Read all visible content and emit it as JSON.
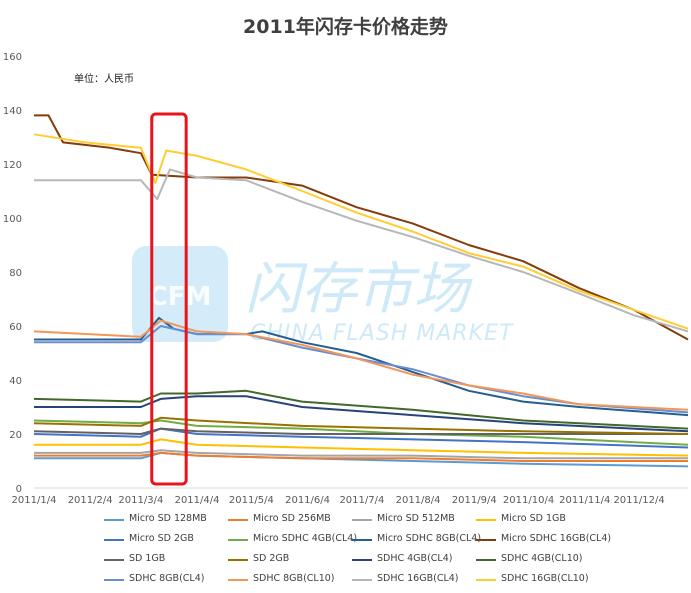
{
  "chart_data": {
    "type": "line",
    "title": "2011年闪存卡价格走势",
    "unit_label": "单位：人民币",
    "watermark": {
      "logo": "CFM",
      "text_cn": "闪存市场",
      "text_en": "CHINA FLASH MARKET"
    },
    "xlabel": "",
    "ylabel": "",
    "ylim": [
      0,
      160
    ],
    "yticks": [
      0,
      20,
      40,
      60,
      80,
      100,
      120,
      140,
      160
    ],
    "xlim": [
      "2011-01-04",
      "2011-12-31"
    ],
    "x_tick_labels": [
      "2011/1/4",
      "2011/2/4",
      "2011/3/4",
      "2011/4/4",
      "2011/5/4",
      "2011/6/4",
      "2011/7/4",
      "2011/8/4",
      "2011/9/4",
      "2011/10/4",
      "2011/11/4",
      "2011/12/4"
    ],
    "x_tick_dates": [
      "2011-01-04",
      "2011-02-04",
      "2011-03-04",
      "2011-04-04",
      "2011-05-04",
      "2011-06-04",
      "2011-07-04",
      "2011-08-04",
      "2011-09-04",
      "2011-10-04",
      "2011-11-04",
      "2011-12-04"
    ],
    "highlight_range": [
      "2011-03-10",
      "2011-03-29"
    ],
    "highlight_color": "#e8141b",
    "grid": false,
    "legend_position": "bottom",
    "series": [
      {
        "name": "Micro SD 128MB",
        "color": "#5b9bd5",
        "x": [
          "2011-01-04",
          "2011-02-15",
          "2011-03-04",
          "2011-03-15",
          "2011-04-04",
          "2011-06-01",
          "2011-08-01",
          "2011-10-01",
          "2011-12-31"
        ],
        "values": [
          11,
          11,
          11,
          13,
          12,
          11,
          10,
          9,
          8
        ]
      },
      {
        "name": "Micro SD 256MB",
        "color": "#ed7d31",
        "x": [
          "2011-01-04",
          "2011-03-04",
          "2011-03-15",
          "2011-04-04",
          "2011-06-01",
          "2011-08-01",
          "2011-10-01",
          "2011-12-31"
        ],
        "values": [
          12,
          12,
          13,
          12,
          11,
          11,
          10,
          10
        ]
      },
      {
        "name": "Micro SD 512MB",
        "color": "#a5a5a5",
        "x": [
          "2011-01-04",
          "2011-03-04",
          "2011-03-15",
          "2011-04-04",
          "2011-06-01",
          "2011-08-01",
          "2011-10-01",
          "2011-12-31"
        ],
        "values": [
          13,
          13,
          14,
          13,
          12,
          12,
          11,
          11
        ]
      },
      {
        "name": "Micro SD 1GB",
        "color": "#ffc000",
        "x": [
          "2011-01-04",
          "2011-03-04",
          "2011-03-15",
          "2011-04-04",
          "2011-06-01",
          "2011-08-01",
          "2011-10-01",
          "2011-12-31"
        ],
        "values": [
          16,
          16,
          18,
          16,
          15,
          14,
          13,
          12
        ]
      },
      {
        "name": "Micro SD 2GB",
        "color": "#4472c4",
        "x": [
          "2011-01-04",
          "2011-03-04",
          "2011-03-15",
          "2011-04-04",
          "2011-06-01",
          "2011-08-01",
          "2011-10-01",
          "2011-12-31"
        ],
        "values": [
          20,
          19,
          22,
          20,
          19,
          18,
          17,
          15
        ]
      },
      {
        "name": "Micro SDHC 4GB(CL4)",
        "color": "#70ad47",
        "x": [
          "2011-01-04",
          "2011-03-04",
          "2011-03-15",
          "2011-04-04",
          "2011-06-01",
          "2011-07-01",
          "2011-08-01",
          "2011-10-01",
          "2011-12-31"
        ],
        "values": [
          25,
          24,
          25,
          23,
          22,
          21,
          20,
          19,
          16
        ]
      },
      {
        "name": "Micro SDHC 8GB(CL4)",
        "color": "#255e91",
        "x": [
          "2011-01-04",
          "2011-02-01",
          "2011-03-04",
          "2011-03-14",
          "2011-03-22",
          "2011-04-04",
          "2011-05-01",
          "2011-05-10",
          "2011-06-01",
          "2011-07-01",
          "2011-08-01",
          "2011-09-01",
          "2011-10-01",
          "2011-11-01",
          "2011-12-31"
        ],
        "values": [
          55,
          55,
          55,
          63,
          59,
          57,
          57,
          58,
          54,
          50,
          43,
          36,
          32,
          30,
          27
        ]
      },
      {
        "name": "Micro SDHC 16GB(CL4)",
        "color": "#843c0c",
        "x": [
          "2011-01-04",
          "2011-01-12",
          "2011-01-20",
          "2011-02-15",
          "2011-03-04",
          "2011-03-10",
          "2011-04-04",
          "2011-05-01",
          "2011-06-01",
          "2011-07-01",
          "2011-08-01",
          "2011-09-01",
          "2011-10-01",
          "2011-11-01",
          "2011-12-01",
          "2011-12-31"
        ],
        "values": [
          138,
          138,
          128,
          126,
          124,
          116,
          115,
          115,
          112,
          104,
          98,
          90,
          84,
          74,
          66,
          55
        ]
      },
      {
        "name": "SD 1GB",
        "color": "#636363",
        "x": [
          "2011-01-04",
          "2011-03-04",
          "2011-03-15",
          "2011-04-04",
          "2011-06-01",
          "2011-08-01",
          "2011-10-01",
          "2011-12-31"
        ],
        "values": [
          21,
          20,
          22,
          21,
          20,
          20,
          20,
          20
        ]
      },
      {
        "name": "SD 2GB",
        "color": "#997300",
        "x": [
          "2011-01-04",
          "2011-03-04",
          "2011-03-15",
          "2011-04-04",
          "2011-06-01",
          "2011-08-01",
          "2011-10-01",
          "2011-12-31"
        ],
        "values": [
          24,
          23,
          26,
          25,
          23,
          22,
          21,
          20
        ]
      },
      {
        "name": "SDHC 4GB(CL4)",
        "color": "#264478",
        "x": [
          "2011-01-04",
          "2011-03-04",
          "2011-03-15",
          "2011-04-04",
          "2011-05-01",
          "2011-06-01",
          "2011-08-01",
          "2011-10-01",
          "2011-12-31"
        ],
        "values": [
          30,
          30,
          33,
          34,
          34,
          30,
          27,
          24,
          21
        ]
      },
      {
        "name": "SDHC 4GB(CL10)",
        "color": "#43682b",
        "x": [
          "2011-01-04",
          "2011-03-04",
          "2011-03-15",
          "2011-04-04",
          "2011-05-01",
          "2011-06-01",
          "2011-08-01",
          "2011-10-01",
          "2011-12-31"
        ],
        "values": [
          33,
          32,
          35,
          35,
          36,
          32,
          29,
          25,
          22
        ]
      },
      {
        "name": "SDHC 8GB(CL4)",
        "color": "#698ed0",
        "x": [
          "2011-01-04",
          "2011-03-04",
          "2011-03-15",
          "2011-04-04",
          "2011-05-01",
          "2011-06-01",
          "2011-07-01",
          "2011-08-01",
          "2011-09-01",
          "2011-10-01",
          "2011-11-01",
          "2011-12-31"
        ],
        "values": [
          54,
          54,
          60,
          57,
          57,
          52,
          48,
          44,
          38,
          34,
          31,
          28
        ]
      },
      {
        "name": "SDHC 8GB(CL10)",
        "color": "#f1975a",
        "x": [
          "2011-01-04",
          "2011-03-04",
          "2011-03-15",
          "2011-04-04",
          "2011-05-01",
          "2011-06-01",
          "2011-07-01",
          "2011-08-01",
          "2011-09-01",
          "2011-10-01",
          "2011-11-01",
          "2011-12-31"
        ],
        "values": [
          58,
          56,
          62,
          58,
          57,
          53,
          48,
          42,
          38,
          35,
          31,
          29
        ]
      },
      {
        "name": "SDHC 16GB(CL4)",
        "color": "#b7b7b7",
        "x": [
          "2011-01-04",
          "2011-03-04",
          "2011-03-13",
          "2011-03-20",
          "2011-04-04",
          "2011-05-01",
          "2011-06-01",
          "2011-07-01",
          "2011-08-01",
          "2011-09-01",
          "2011-10-01",
          "2011-11-01",
          "2011-12-01",
          "2011-12-31"
        ],
        "values": [
          114,
          114,
          107,
          118,
          115,
          114,
          106,
          99,
          93,
          86,
          80,
          72,
          64,
          58
        ]
      },
      {
        "name": "SDHC 16GB(CL10)",
        "color": "#ffcd33",
        "x": [
          "2011-01-04",
          "2011-02-01",
          "2011-03-04",
          "2011-03-12",
          "2011-03-18",
          "2011-04-04",
          "2011-05-01",
          "2011-06-01",
          "2011-07-01",
          "2011-08-01",
          "2011-09-01",
          "2011-10-01",
          "2011-11-01",
          "2011-12-01",
          "2011-12-31"
        ],
        "values": [
          131,
          128,
          126,
          113,
          125,
          123,
          118,
          110,
          102,
          95,
          87,
          82,
          73,
          66,
          59
        ]
      }
    ]
  }
}
